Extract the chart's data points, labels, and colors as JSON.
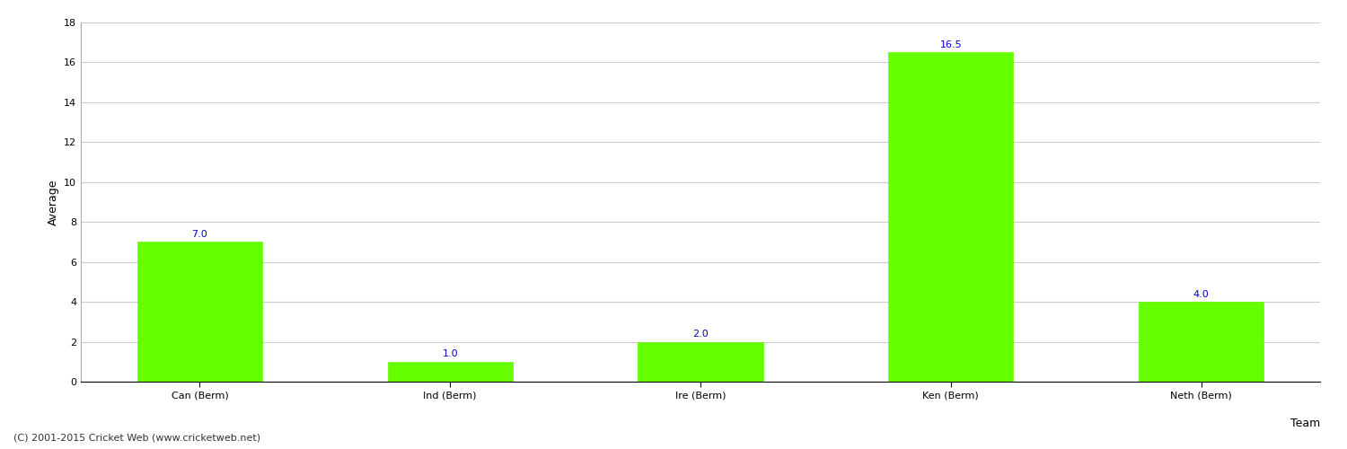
{
  "categories": [
    "Can (Berm)",
    "Ind (Berm)",
    "Ire (Berm)",
    "Ken (Berm)",
    "Neth (Berm)"
  ],
  "values": [
    7.0,
    1.0,
    2.0,
    16.5,
    4.0
  ],
  "bar_color": "#66ff00",
  "bar_edge_color": "#66ff00",
  "label_color": "#0000cc",
  "ylabel": "Average",
  "xlabel": "Team",
  "ylim": [
    0,
    18
  ],
  "yticks": [
    0,
    2,
    4,
    6,
    8,
    10,
    12,
    14,
    16,
    18
  ],
  "grid_color": "#cccccc",
  "background_color": "#ffffff",
  "label_fontsize": 8,
  "axis_label_fontsize": 9,
  "tick_fontsize": 8,
  "footer_text": "(C) 2001-2015 Cricket Web (www.cricketweb.net)",
  "footer_fontsize": 8,
  "spine_color": "#aaaaaa"
}
